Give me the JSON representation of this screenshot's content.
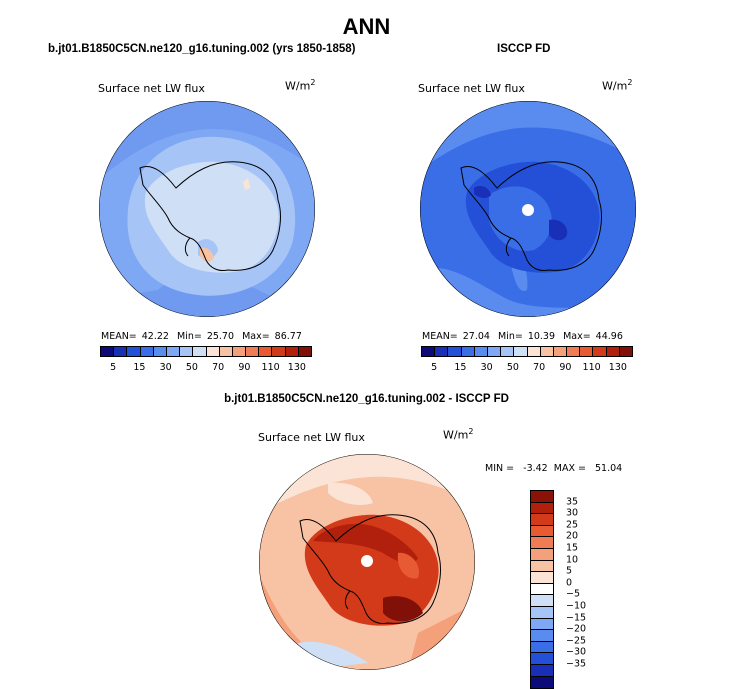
{
  "title": "ANN",
  "panels": [
    {
      "case": "b.jt01.B1850C5CN.ne120_g16.tuning.002 (yrs 1850-1858)",
      "variable": "Surface net LW flux",
      "units_base": "W/m",
      "units_exp": "2",
      "mean_label": "MEAN=",
      "mean": "42.22",
      "min_label": "Min=",
      "min": "25.70",
      "max_label": "Max=",
      "max": "86.77"
    },
    {
      "case": "ISCCP FD",
      "variable": "Surface net LW flux",
      "units_base": "W/m",
      "units_exp": "2",
      "mean_label": "MEAN=",
      "mean": "27.04",
      "min_label": "Min=",
      "min": "10.39",
      "max_label": "Max=",
      "max": "44.96"
    },
    {
      "case": "b.jt01.B1850C5CN.ne120_g16.tuning.002 - ISCCP FD",
      "variable": "Surface net LW flux",
      "units_base": "W/m",
      "units_exp": "2",
      "minmax_text": "MIN =   -3.42  MAX =   51.04"
    }
  ],
  "colorbar_top": {
    "colors": [
      "#0b0b7a",
      "#1a2fb8",
      "#2450d8",
      "#3a6ee6",
      "#5a8cf0",
      "#7ea8f4",
      "#a6c4f6",
      "#cfdff6",
      "#fbe4d6",
      "#f8c2a4",
      "#f4a07a",
      "#ef7c55",
      "#e85a32",
      "#d23a1a",
      "#b0200c",
      "#801008"
    ],
    "labels": [
      "5",
      "15",
      "30",
      "50",
      "70",
      "90",
      "110",
      "130"
    ]
  },
  "colorbar_diff": {
    "colors": [
      "#8a1206",
      "#b0200c",
      "#d23a1a",
      "#e85a32",
      "#ef7c55",
      "#f4a07a",
      "#f8c2a4",
      "#fbe4d6",
      "#ffffff",
      "#cfdff6",
      "#a6c4f6",
      "#7ea8f4",
      "#5a8cf0",
      "#3a6ee6",
      "#2450d8",
      "#1a2fb8",
      "#0b0b7a"
    ],
    "labels": [
      "35",
      "30",
      "25",
      "20",
      "15",
      "10",
      "5",
      "0",
      "−5",
      "−10",
      "−15",
      "−20",
      "−25",
      "−30",
      "−35"
    ]
  }
}
